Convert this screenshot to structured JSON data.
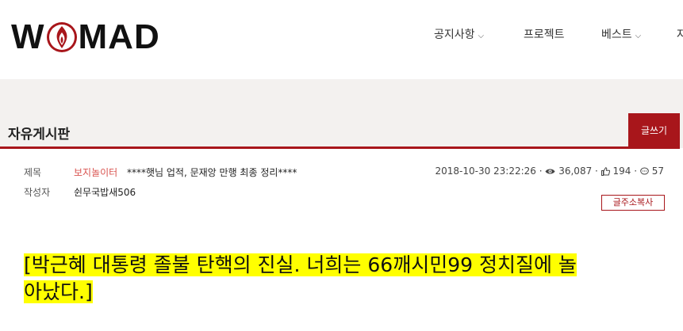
{
  "site": {
    "logo_text_left": "W",
    "logo_text_right": "MAD"
  },
  "nav": {
    "items": [
      {
        "label": "공지사항",
        "has_dropdown": true
      },
      {
        "label": "프로젝트",
        "has_dropdown": false
      },
      {
        "label": "베스트",
        "has_dropdown": true
      },
      {
        "label": "자",
        "has_dropdown": false
      }
    ]
  },
  "board": {
    "title": "자유게시판",
    "write_button": "글쓰기"
  },
  "post": {
    "title_label": "제목",
    "author_label": "작성자",
    "category": "보지놀이터",
    "title": "****햇님 업적, 문재앙 만행 최종 정리****",
    "datetime": "2018-10-30 23:22:26",
    "views": "36,087",
    "likes": "194",
    "comments": "57",
    "author": "쉰무국밥새506",
    "copy_button": "글주소복사",
    "headline_line1": "[박근혜 대통령 졸불 탄핵의 진실. 너희는 66깨시민99 정치질에 놀",
    "headline_line2": "아났다.]"
  },
  "colors": {
    "accent": "#a8161b",
    "category": "#d9534f",
    "highlight": "#ffff00",
    "band": "#f3f1ef"
  }
}
